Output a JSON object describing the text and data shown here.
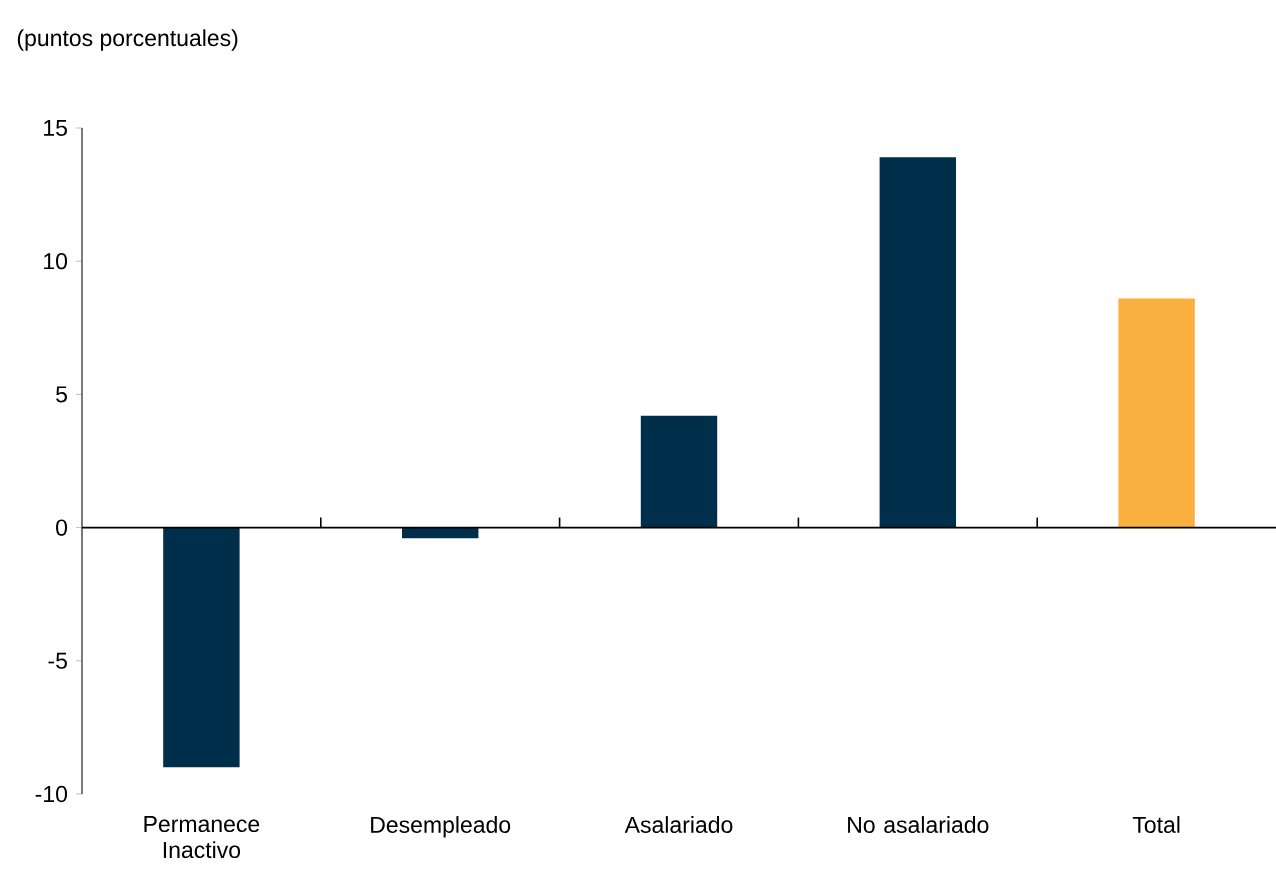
{
  "chart_data": {
    "type": "bar",
    "ylabel": "(puntos porcentuales)",
    "categories": [
      "Permanece Inactivo",
      "Desempleado",
      "Asalariado",
      "No asalariado",
      "Total"
    ],
    "values": [
      -9.0,
      -0.4,
      4.2,
      13.9,
      8.6
    ],
    "colors": [
      "#002f4c",
      "#002f4c",
      "#002f4c",
      "#002f4c",
      "#f9b03f"
    ],
    "ylim": [
      -10,
      15
    ],
    "yticks": [
      -10,
      -5,
      0,
      5,
      10,
      15
    ]
  }
}
